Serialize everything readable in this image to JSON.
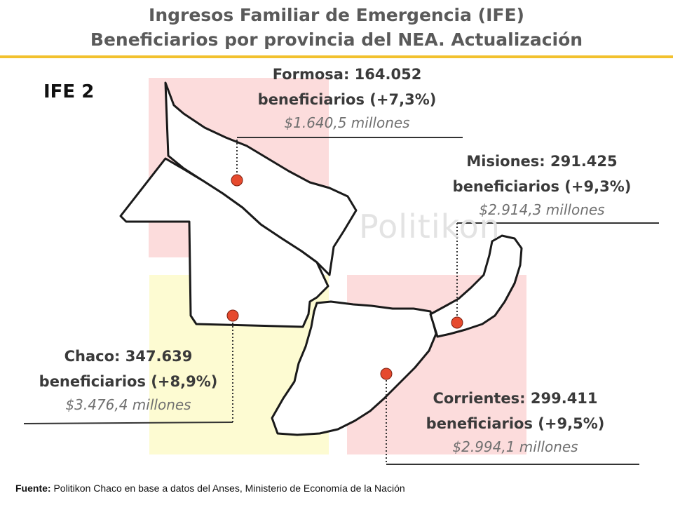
{
  "title": {
    "line1": "Ingresos Familiar de Emergencia (IFE)",
    "line2": "Beneficiarios por provincia del NEA. Actualización"
  },
  "panel_label": "IFE 2",
  "watermark": "Politikon",
  "colors": {
    "accent_rule": "#f2c12e",
    "highlight_pink": "#fcdcdc",
    "highlight_yellow": "#fdfbd2",
    "marker": "#e64a2e",
    "outline": "#1a1a1a"
  },
  "provinces": [
    {
      "id": "formosa",
      "name": "Formosa: 164.052",
      "beneficiaries": "beneficiarios (+7,3%)",
      "amount": "$1.640,5 millones"
    },
    {
      "id": "misiones",
      "name": "Misiones: 291.425",
      "beneficiaries": "beneficiarios (+9,3%)",
      "amount": "$2.914,3 millones"
    },
    {
      "id": "chaco",
      "name": "Chaco: 347.639",
      "beneficiaries": "beneficiarios (+8,9%)",
      "amount": "$3.476,4 millones"
    },
    {
      "id": "corrientes",
      "name": "Corrientes: 299.411",
      "beneficiaries": "beneficiarios (+9,5%)",
      "amount": "$2.994,1 millones"
    }
  ],
  "source": {
    "label": "Fuente:",
    "text": " Politikon Chaco en base a datos del Anses, Ministerio de Economía de la Nación"
  }
}
